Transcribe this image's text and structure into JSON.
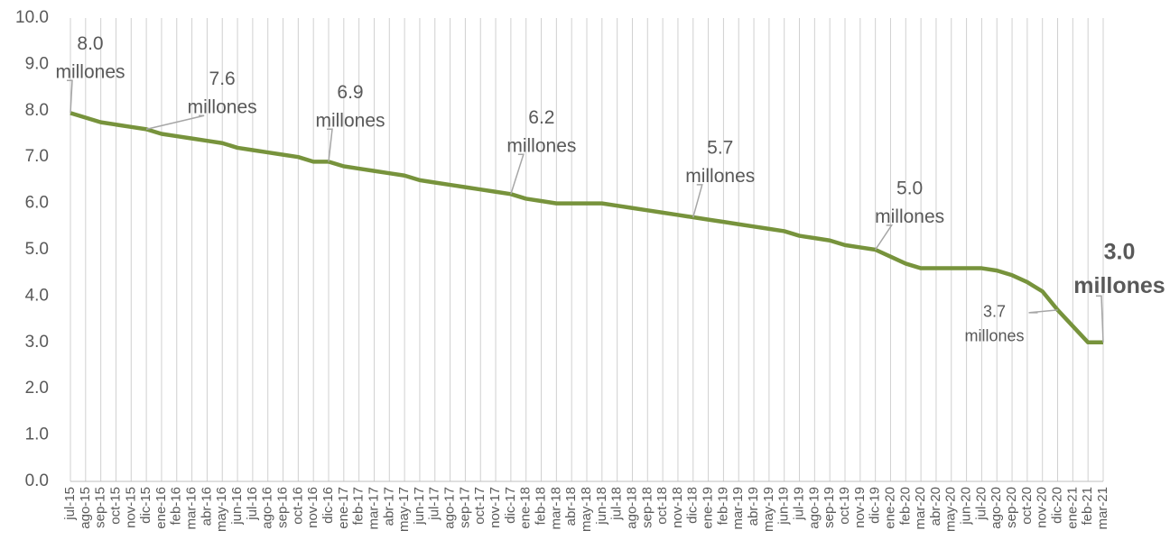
{
  "chart_data": {
    "type": "line",
    "categories": [
      "jul-15",
      "ago-15",
      "sep-15",
      "oct-15",
      "nov-15",
      "dic-15",
      "ene-16",
      "feb-16",
      "mar-16",
      "abr-16",
      "may-16",
      "jun-16",
      "jul-16",
      "ago-16",
      "sep-16",
      "oct-16",
      "nov-16",
      "dic-16",
      "ene-17",
      "feb-17",
      "mar-17",
      "abr-17",
      "may-17",
      "jun-17",
      "jul-17",
      "ago-17",
      "sep-17",
      "oct-17",
      "nov-17",
      "dic-17",
      "ene-18",
      "feb-18",
      "mar-18",
      "abr-18",
      "may-18",
      "jun-18",
      "jul-18",
      "ago-18",
      "sep-18",
      "oct-18",
      "nov-18",
      "dic-18",
      "ene-19",
      "feb-19",
      "mar-19",
      "abr-19",
      "may-19",
      "jun-19",
      "jul-19",
      "ago-19",
      "sep-19",
      "oct-19",
      "nov-19",
      "dic-19",
      "ene-20",
      "feb-20",
      "mar-20",
      "abr-20",
      "may-20",
      "jun-20",
      "jul-20",
      "ago-20",
      "sep-20",
      "oct-20",
      "nov-20",
      "dic-20",
      "ene-21",
      "feb-21",
      "mar-21"
    ],
    "series": [
      {
        "color": "#77933c",
        "values": [
          7.95,
          7.85,
          7.75,
          7.7,
          7.65,
          7.6,
          7.5,
          7.45,
          7.4,
          7.35,
          7.3,
          7.2,
          7.15,
          7.1,
          7.05,
          7.0,
          6.9,
          6.9,
          6.8,
          6.75,
          6.7,
          6.65,
          6.6,
          6.5,
          6.45,
          6.4,
          6.35,
          6.3,
          6.25,
          6.2,
          6.1,
          6.05,
          6.0,
          6.0,
          6.0,
          6.0,
          5.95,
          5.9,
          5.85,
          5.8,
          5.75,
          5.7,
          5.65,
          5.6,
          5.55,
          5.5,
          5.45,
          5.4,
          5.3,
          5.25,
          5.2,
          5.1,
          5.05,
          5.0,
          4.85,
          4.7,
          4.6,
          4.6,
          4.6,
          4.6,
          4.6,
          4.55,
          4.45,
          4.3,
          4.1,
          3.7,
          3.35,
          3.0,
          3.0
        ],
        "value_labels": [
          "8.0",
          null,
          null,
          null,
          null,
          "7.6",
          null,
          null,
          null,
          null,
          null,
          null,
          null,
          null,
          null,
          null,
          null,
          "6.9",
          null,
          null,
          null,
          null,
          null,
          null,
          null,
          null,
          null,
          null,
          null,
          "6.2",
          null,
          null,
          null,
          null,
          null,
          null,
          null,
          null,
          null,
          null,
          null,
          "5.7",
          null,
          null,
          null,
          null,
          null,
          null,
          null,
          null,
          null,
          null,
          null,
          "5.0",
          null,
          null,
          null,
          null,
          null,
          null,
          null,
          null,
          null,
          null,
          null,
          "3.7",
          null,
          null,
          "3.0"
        ],
        "value_label_unit": "millones"
      }
    ],
    "ylim": [
      0,
      10
    ],
    "yticks": [
      {
        "value": 0,
        "label": "0.0"
      },
      {
        "value": 1,
        "label": "1.0"
      },
      {
        "value": 2,
        "label": "2.0"
      },
      {
        "value": 3,
        "label": "3.0"
      },
      {
        "value": 4,
        "label": "4.0"
      },
      {
        "value": 5,
        "label": "5.0"
      },
      {
        "value": 6,
        "label": "6.0"
      },
      {
        "value": 7,
        "label": "7.0"
      },
      {
        "value": 8,
        "label": "8.0"
      },
      {
        "value": 9,
        "label": "9.0"
      },
      {
        "value": 10,
        "label": "10.0"
      }
    ],
    "grid": "x"
  }
}
